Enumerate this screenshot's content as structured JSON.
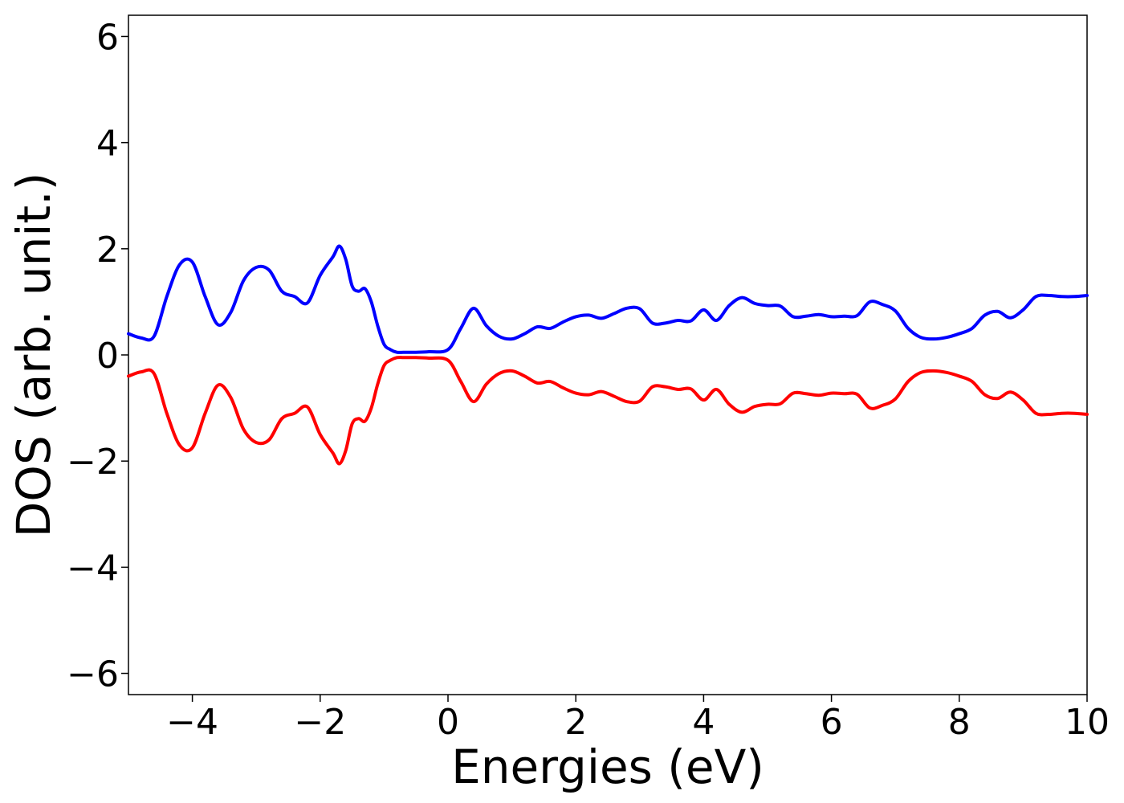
{
  "chart_data": {
    "type": "line",
    "title": "",
    "xlabel": "Energies (eV)",
    "ylabel": "DOS (arb. unit.)",
    "xlim": [
      -5,
      10
    ],
    "ylim": [
      -6.4,
      6.4
    ],
    "xticks": [
      -4,
      -2,
      0,
      2,
      4,
      6,
      8,
      10
    ],
    "xtick_labels": [
      "−4",
      "−2",
      "0",
      "2",
      "4",
      "6",
      "8",
      "10"
    ],
    "yticks": [
      6,
      4,
      2,
      0,
      -2,
      -4,
      -6
    ],
    "ytick_labels": [
      "6",
      "4",
      "2",
      "0",
      "−2",
      "−4",
      "−6"
    ],
    "grid": false,
    "legend": "none",
    "series": [
      {
        "color": "#0000ff",
        "x": [
          -5.0,
          -4.8,
          -4.6,
          -4.4,
          -4.2,
          -4.0,
          -3.8,
          -3.6,
          -3.4,
          -3.2,
          -3.0,
          -2.8,
          -2.6,
          -2.4,
          -2.2,
          -2.0,
          -1.8,
          -1.7,
          -1.6,
          -1.5,
          -1.4,
          -1.3,
          -1.2,
          -1.1,
          -1.0,
          -0.9,
          -0.8,
          -0.7,
          -0.6,
          -0.5,
          -0.3,
          0.0,
          0.2,
          0.4,
          0.6,
          0.8,
          1.0,
          1.2,
          1.4,
          1.6,
          1.8,
          2.0,
          2.2,
          2.4,
          2.6,
          2.8,
          3.0,
          3.2,
          3.4,
          3.6,
          3.8,
          4.0,
          4.2,
          4.4,
          4.6,
          4.8,
          5.0,
          5.2,
          5.4,
          5.6,
          5.8,
          6.0,
          6.2,
          6.4,
          6.6,
          6.8,
          7.0,
          7.2,
          7.4,
          7.6,
          7.8,
          8.0,
          8.2,
          8.4,
          8.6,
          8.8,
          9.0,
          9.2,
          9.4,
          9.6,
          9.8,
          10.0
        ],
        "y": [
          0.4,
          0.32,
          0.35,
          1.1,
          1.7,
          1.75,
          1.1,
          0.57,
          0.8,
          1.4,
          1.65,
          1.6,
          1.2,
          1.1,
          0.98,
          1.5,
          1.85,
          2.05,
          1.8,
          1.3,
          1.2,
          1.25,
          1.0,
          0.55,
          0.2,
          0.1,
          0.05,
          0.05,
          0.05,
          0.05,
          0.06,
          0.1,
          0.5,
          0.88,
          0.55,
          0.35,
          0.3,
          0.4,
          0.53,
          0.5,
          0.62,
          0.72,
          0.75,
          0.69,
          0.78,
          0.88,
          0.87,
          0.6,
          0.6,
          0.65,
          0.64,
          0.85,
          0.65,
          0.93,
          1.08,
          0.97,
          0.93,
          0.92,
          0.72,
          0.73,
          0.76,
          0.72,
          0.73,
          0.74,
          1.0,
          0.95,
          0.83,
          0.5,
          0.33,
          0.3,
          0.33,
          0.4,
          0.5,
          0.75,
          0.82,
          0.7,
          0.85,
          1.1,
          1.12,
          1.1,
          1.1,
          1.12
        ]
      },
      {
        "color": "#ff0000",
        "x": [
          -5.0,
          -4.8,
          -4.6,
          -4.4,
          -4.2,
          -4.0,
          -3.8,
          -3.6,
          -3.4,
          -3.2,
          -3.0,
          -2.8,
          -2.6,
          -2.4,
          -2.2,
          -2.0,
          -1.8,
          -1.7,
          -1.6,
          -1.5,
          -1.4,
          -1.3,
          -1.2,
          -1.1,
          -1.0,
          -0.9,
          -0.8,
          -0.7,
          -0.6,
          -0.5,
          -0.3,
          0.0,
          0.2,
          0.4,
          0.6,
          0.8,
          1.0,
          1.2,
          1.4,
          1.6,
          1.8,
          2.0,
          2.2,
          2.4,
          2.6,
          2.8,
          3.0,
          3.2,
          3.4,
          3.6,
          3.8,
          4.0,
          4.2,
          4.4,
          4.6,
          4.8,
          5.0,
          5.2,
          5.4,
          5.6,
          5.8,
          6.0,
          6.2,
          6.4,
          6.6,
          6.8,
          7.0,
          7.2,
          7.4,
          7.6,
          7.8,
          8.0,
          8.2,
          8.4,
          8.6,
          8.8,
          9.0,
          9.2,
          9.4,
          9.6,
          9.8,
          10.0
        ],
        "y": [
          -0.4,
          -0.32,
          -0.35,
          -1.1,
          -1.7,
          -1.75,
          -1.1,
          -0.57,
          -0.8,
          -1.4,
          -1.65,
          -1.6,
          -1.2,
          -1.1,
          -0.98,
          -1.5,
          -1.85,
          -2.05,
          -1.8,
          -1.3,
          -1.2,
          -1.25,
          -1.0,
          -0.55,
          -0.2,
          -0.1,
          -0.05,
          -0.05,
          -0.05,
          -0.05,
          -0.06,
          -0.1,
          -0.5,
          -0.88,
          -0.55,
          -0.35,
          -0.3,
          -0.4,
          -0.53,
          -0.5,
          -0.62,
          -0.72,
          -0.75,
          -0.69,
          -0.78,
          -0.88,
          -0.87,
          -0.6,
          -0.6,
          -0.65,
          -0.64,
          -0.85,
          -0.65,
          -0.93,
          -1.08,
          -0.97,
          -0.93,
          -0.92,
          -0.72,
          -0.73,
          -0.76,
          -0.72,
          -0.73,
          -0.74,
          -1.0,
          -0.95,
          -0.83,
          -0.5,
          -0.33,
          -0.3,
          -0.33,
          -0.4,
          -0.5,
          -0.75,
          -0.82,
          -0.7,
          -0.85,
          -1.1,
          -1.12,
          -1.1,
          -1.1,
          -1.12
        ]
      }
    ]
  }
}
